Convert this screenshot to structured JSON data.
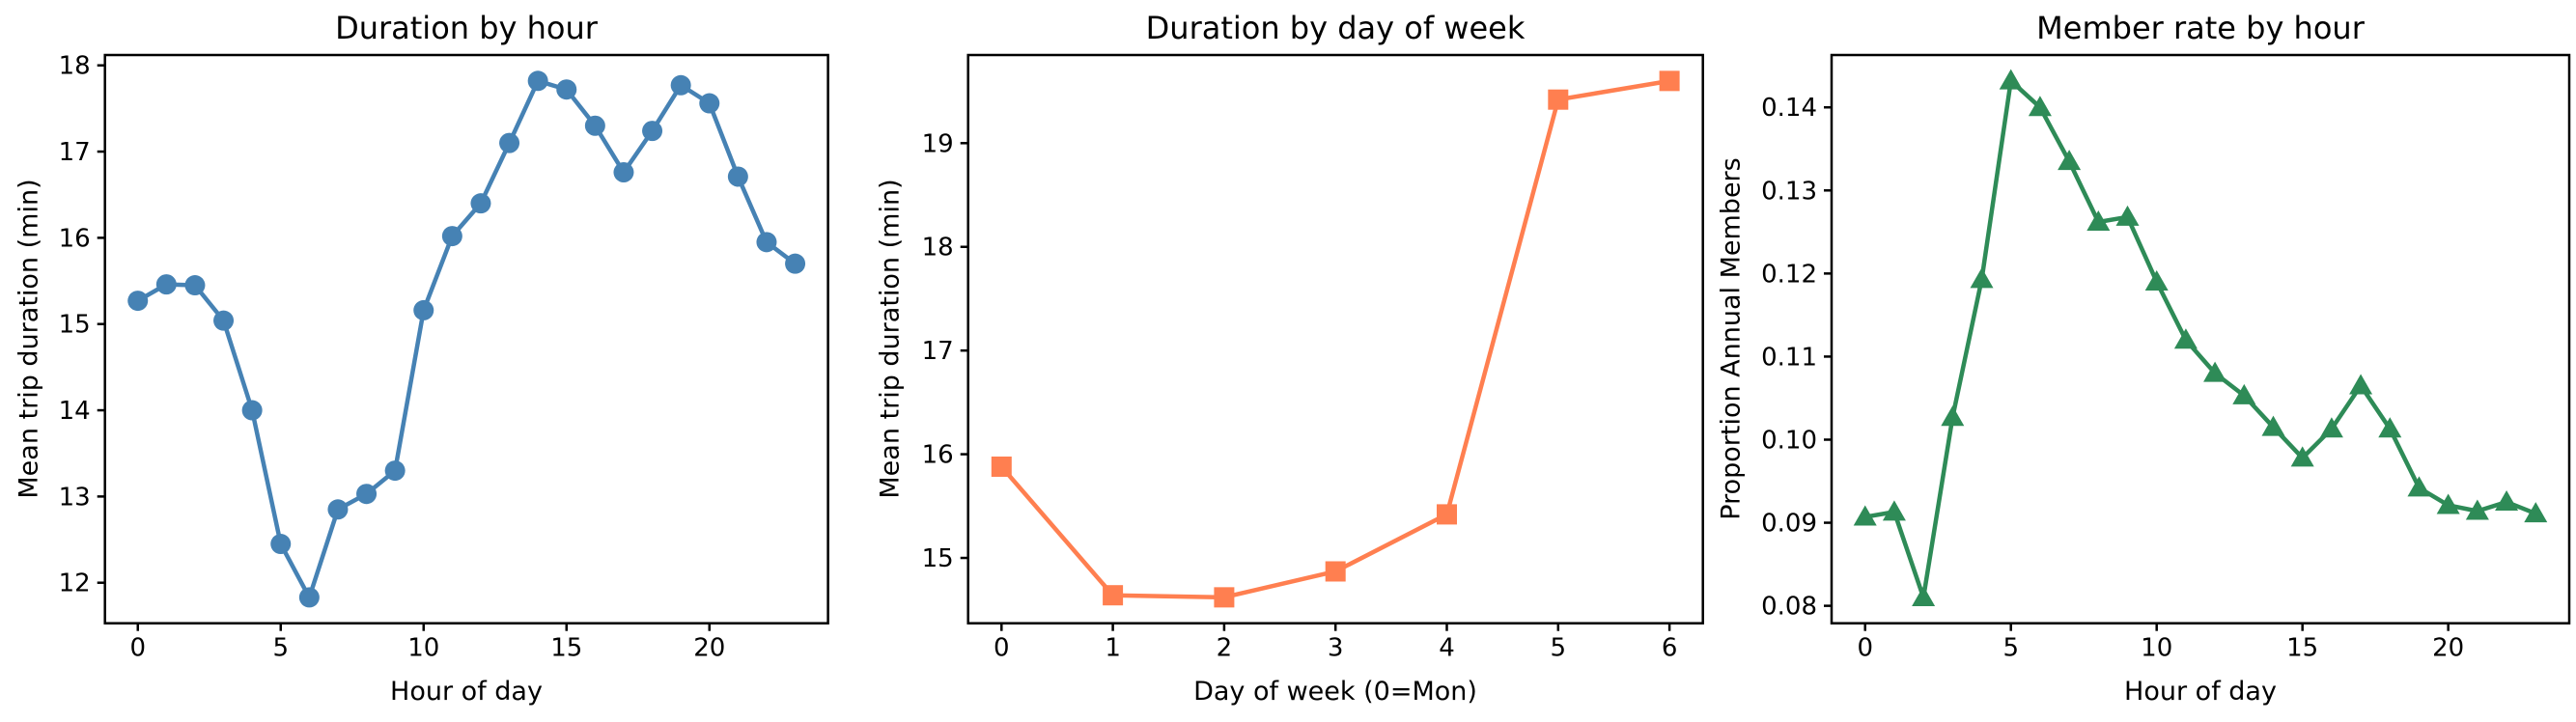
{
  "figure": {
    "background": "#ffffff",
    "text_color": "#000000",
    "spine_color": "#000000"
  },
  "chart_data": [
    {
      "id": "duration-by-hour",
      "type": "line",
      "title": "Duration by hour",
      "xlabel": "Hour of day",
      "ylabel": "Mean trip duration (min)",
      "color": "#4682B4",
      "marker": "circle",
      "grid": false,
      "legend": null,
      "x": [
        0,
        1,
        2,
        3,
        4,
        5,
        6,
        7,
        8,
        9,
        10,
        11,
        12,
        13,
        14,
        15,
        16,
        17,
        18,
        19,
        20,
        21,
        22,
        23
      ],
      "y": [
        15.27,
        15.46,
        15.45,
        15.04,
        14.0,
        12.45,
        11.83,
        12.85,
        13.03,
        13.3,
        15.16,
        16.02,
        16.4,
        17.1,
        17.82,
        17.72,
        17.3,
        16.76,
        17.24,
        17.77,
        17.56,
        16.71,
        15.95,
        15.7
      ],
      "xlim": [
        -1.15,
        24.15
      ],
      "ylim": [
        11.53,
        18.12
      ],
      "xticks": {
        "values": [
          0,
          5,
          10,
          15,
          20
        ],
        "labels": [
          "0",
          "5",
          "10",
          "15",
          "20"
        ]
      },
      "yticks": {
        "values": [
          12,
          13,
          14,
          15,
          16,
          17,
          18
        ],
        "labels": [
          "12",
          "13",
          "14",
          "15",
          "16",
          "17",
          "18"
        ]
      }
    },
    {
      "id": "duration-by-day-of-week",
      "type": "line",
      "title": "Duration by day of week",
      "xlabel": "Day of week (0=Mon)",
      "ylabel": "Mean trip duration (min)",
      "color": "#FF7F50",
      "marker": "square",
      "grid": false,
      "legend": null,
      "x": [
        0,
        1,
        2,
        3,
        4,
        5,
        6
      ],
      "y": [
        15.88,
        14.64,
        14.62,
        14.87,
        15.42,
        19.42,
        19.6
      ],
      "xlim": [
        -0.3,
        6.3
      ],
      "ylim": [
        14.37,
        19.85
      ],
      "xticks": {
        "values": [
          0,
          1,
          2,
          3,
          4,
          5,
          6
        ],
        "labels": [
          "0",
          "1",
          "2",
          "3",
          "4",
          "5",
          "6"
        ]
      },
      "yticks": {
        "values": [
          15,
          16,
          17,
          18,
          19
        ],
        "labels": [
          "15",
          "16",
          "17",
          "18",
          "19"
        ]
      }
    },
    {
      "id": "member-rate-by-hour",
      "type": "line",
      "title": "Member rate by hour",
      "xlabel": "Hour of day",
      "ylabel": "Proportion Annual Members",
      "color": "#2E8B57",
      "marker": "triangle-up",
      "grid": false,
      "legend": null,
      "x": [
        0,
        1,
        2,
        3,
        4,
        5,
        6,
        7,
        8,
        9,
        10,
        11,
        12,
        13,
        14,
        15,
        16,
        17,
        18,
        19,
        20,
        21,
        22,
        23
      ],
      "y": [
        0.0907,
        0.0913,
        0.081,
        0.1027,
        0.1193,
        0.1432,
        0.14,
        0.1335,
        0.1262,
        0.1268,
        0.119,
        0.112,
        0.108,
        0.1053,
        0.1015,
        0.0978,
        0.1013,
        0.1065,
        0.1013,
        0.0942,
        0.0921,
        0.0914,
        0.0925,
        0.0911
      ],
      "xlim": [
        -1.15,
        24.15
      ],
      "ylim": [
        0.0779,
        0.1463
      ],
      "xticks": {
        "values": [
          0,
          5,
          10,
          15,
          20
        ],
        "labels": [
          "0",
          "5",
          "10",
          "15",
          "20"
        ]
      },
      "yticks": {
        "values": [
          0.08,
          0.09,
          0.1,
          0.11,
          0.12,
          0.13,
          0.14
        ],
        "labels": [
          "0.08",
          "0.09",
          "0.10",
          "0.11",
          "0.12",
          "0.13",
          "0.14"
        ]
      }
    }
  ]
}
